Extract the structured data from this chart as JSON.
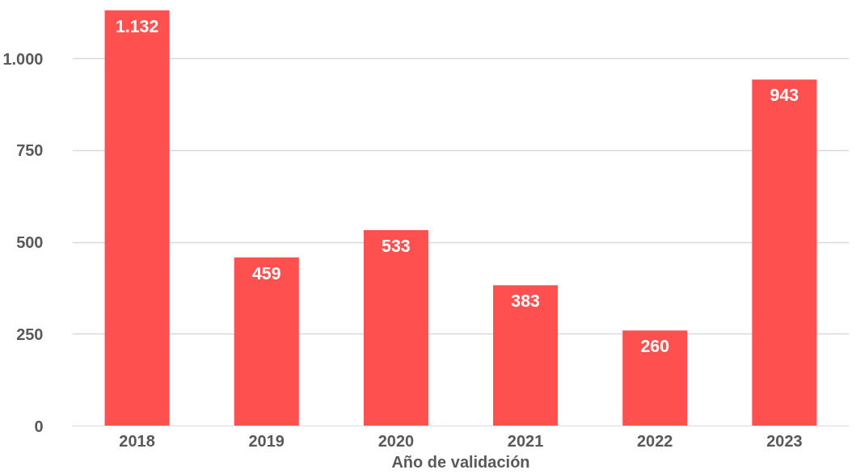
{
  "chart_data": {
    "type": "bar",
    "xlabel": "Año de validación",
    "categories": [
      "2018",
      "2019",
      "2020",
      "2021",
      "2022",
      "2023"
    ],
    "values": [
      1132,
      459,
      533,
      383,
      260,
      943
    ],
    "value_labels": [
      "1.132",
      "459",
      "533",
      "383",
      "260",
      "943"
    ],
    "color": "#ff5050",
    "ylim": [
      0,
      1132
    ],
    "yticks": [
      0,
      250,
      500,
      750,
      {
        "value": 1000,
        "label": "1.000"
      }
    ],
    "grid": "y"
  }
}
